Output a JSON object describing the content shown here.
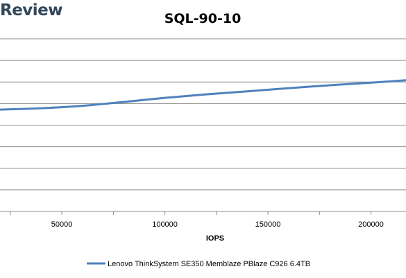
{
  "logo": {
    "text": "Review"
  },
  "chart_data": {
    "type": "line",
    "title": "SQL-90-10",
    "xlabel": "IOPS",
    "ylabel": "",
    "xlim": [
      20000,
      217000
    ],
    "ylim": [
      0,
      10
    ],
    "x_ticks": [
      50000,
      100000,
      150000,
      200000
    ],
    "x_tick_labels": [
      "50000",
      "100000",
      "150000",
      "200000"
    ],
    "y_tick_labels": [],
    "grid": true,
    "legend_position": "bottom",
    "series": [
      {
        "name": "Lenovo ThinkSystem SE350 Memblaze PBlaze C926 6.4TB",
        "color": "#4f81bd",
        "x": [
          20000,
          40000,
          60000,
          80000,
          100000,
          120000,
          140000,
          160000,
          180000,
          200000,
          217000
        ],
        "y": [
          5.9,
          5.98,
          6.12,
          6.34,
          6.58,
          6.78,
          6.96,
          7.14,
          7.31,
          7.46,
          7.6
        ]
      }
    ]
  }
}
